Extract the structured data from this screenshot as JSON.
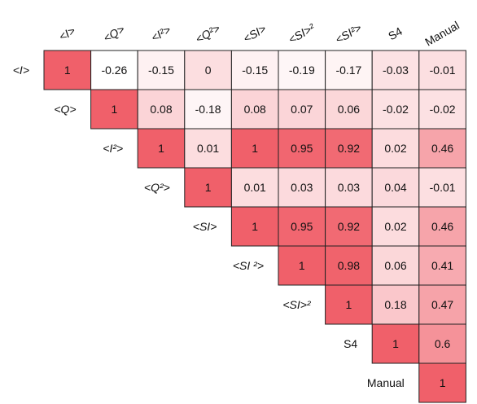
{
  "chart_data": {
    "type": "heatmap",
    "title": "",
    "variables": [
      "<I>",
      "<Q>",
      "<I²>",
      "<Q²>",
      "<SI>",
      "<SI²>",
      "<SI>²",
      "S4",
      "Manual"
    ],
    "column_labels": [
      "<I>",
      "<Q>",
      "<I²>",
      "<Q²>",
      "<SI>",
      "<SI>²",
      "<SI²>",
      "S4",
      "Manual"
    ],
    "row_labels": [
      "<I>",
      "<Q>",
      "<I²>",
      "<Q²>",
      "<SI>",
      "<SI ²>",
      "<SI>²",
      "S4",
      "Manual"
    ],
    "matrix_upper": [
      [
        1,
        -0.26,
        -0.15,
        0,
        -0.15,
        -0.19,
        -0.17,
        -0.03,
        -0.01
      ],
      [
        null,
        1,
        0.08,
        -0.18,
        0.08,
        0.07,
        0.06,
        -0.02,
        -0.02
      ],
      [
        null,
        null,
        1,
        0.01,
        1,
        0.95,
        0.92,
        0.02,
        0.46
      ],
      [
        null,
        null,
        null,
        1,
        0.01,
        0.03,
        0.03,
        0.04,
        -0.01
      ],
      [
        null,
        null,
        null,
        null,
        1,
        0.95,
        0.92,
        0.02,
        0.46
      ],
      [
        null,
        null,
        null,
        null,
        null,
        1,
        0.98,
        0.06,
        0.41
      ],
      [
        null,
        null,
        null,
        null,
        null,
        null,
        1,
        0.18,
        0.47
      ],
      [
        null,
        null,
        null,
        null,
        null,
        null,
        null,
        1,
        0.6
      ],
      [
        null,
        null,
        null,
        null,
        null,
        null,
        null,
        null,
        1
      ]
    ],
    "value_range": [
      -0.26,
      1
    ],
    "color_low": "#ffffff",
    "color_high": "#f0606a",
    "grid": true,
    "legend": "none"
  }
}
